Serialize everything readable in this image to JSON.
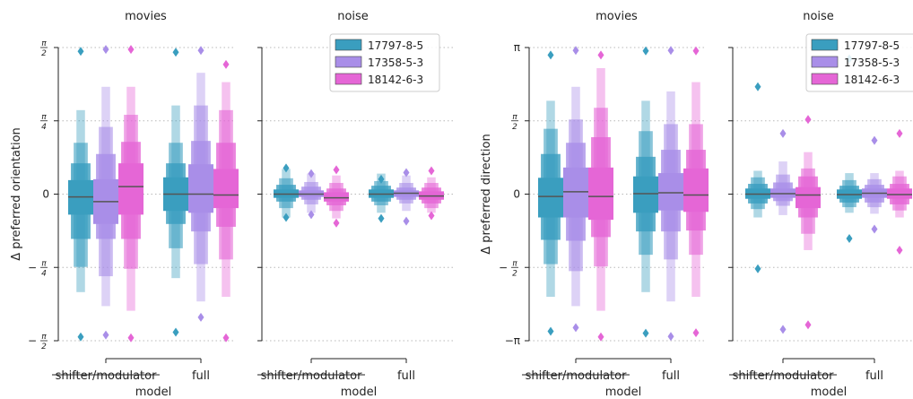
{
  "colors": {
    "17797-8-5": "#3a9ebf",
    "17358-5-3": "#a98ee8",
    "18142-6-3": "#e566d6"
  },
  "chart_data": [
    {
      "type": "boxen",
      "title": "movies",
      "xlabel": "model",
      "ylabel": "Δ preferred orientation",
      "categories": [
        "shifter/modulator",
        "full"
      ],
      "ylim": [
        -1.5708,
        1.5708
      ],
      "yticks": [
        {
          "v": 1.5708,
          "num": "π",
          "den": "2",
          "sign": ""
        },
        {
          "v": 0.7854,
          "num": "π",
          "den": "4",
          "sign": ""
        },
        {
          "v": 0,
          "txt": "0"
        },
        {
          "v": -0.7854,
          "num": "π",
          "den": "4",
          "sign": "−"
        },
        {
          "v": -1.5708,
          "num": "π",
          "den": "2",
          "sign": "−"
        }
      ],
      "series": [
        {
          "name": "17797-8-5",
          "values": [
            {
              "median": -0.03,
              "boxes": [
                [
                  -0.22,
                  0.15
                ],
                [
                  -0.48,
                  0.33
                ],
                [
                  -0.78,
                  0.55
                ],
                [
                  -1.05,
                  0.9
                ]
              ],
              "outliers": [
                1.53,
                -1.53
              ]
            },
            {
              "median": 0.0,
              "boxes": [
                [
                  -0.18,
                  0.18
                ],
                [
                  -0.32,
                  0.33
                ],
                [
                  -0.58,
                  0.55
                ],
                [
                  -0.9,
                  0.95
                ]
              ],
              "outliers": [
                1.52,
                -1.48
              ]
            }
          ]
        },
        {
          "name": "17358-5-3",
          "values": [
            {
              "median": -0.08,
              "boxes": [
                [
                  -0.32,
                  0.16
                ],
                [
                  -0.48,
                  0.43
                ],
                [
                  -0.88,
                  0.72
                ],
                [
                  -1.2,
                  1.15
                ]
              ],
              "outliers": [
                1.55,
                -1.51
              ]
            },
            {
              "median": 0.0,
              "boxes": [
                [
                  -0.2,
                  0.32
                ],
                [
                  -0.4,
                  0.57
                ],
                [
                  -0.75,
                  0.95
                ],
                [
                  -1.15,
                  1.3
                ]
              ],
              "outliers": [
                1.54,
                -1.32
              ]
            }
          ]
        },
        {
          "name": "18142-6-3",
          "values": [
            {
              "median": 0.08,
              "boxes": [
                [
                  -0.22,
                  0.33
                ],
                [
                  -0.48,
                  0.56
                ],
                [
                  -0.8,
                  0.85
                ],
                [
                  -1.25,
                  1.15
                ]
              ],
              "outliers": [
                1.55,
                -1.54
              ]
            },
            {
              "median": -0.01,
              "boxes": [
                [
                  -0.15,
                  0.27
                ],
                [
                  -0.35,
                  0.55
                ],
                [
                  -0.7,
                  0.9
                ],
                [
                  -1.1,
                  1.2
                ]
              ],
              "outliers": [
                1.39,
                -1.54
              ]
            }
          ]
        }
      ]
    },
    {
      "type": "boxen",
      "title": "noise",
      "xlabel": "model",
      "ylabel": "",
      "categories": [
        "shifter/modulator",
        "full"
      ],
      "ylim": [
        -1.5708,
        1.5708
      ],
      "legend": "top-right",
      "series": [
        {
          "name": "17797-8-5",
          "values": [
            {
              "median": 0.0,
              "boxes": [
                [
                  -0.04,
                  0.05
                ],
                [
                  -0.08,
                  0.1
                ],
                [
                  -0.15,
                  0.17
                ],
                [
                  -0.25,
                  0.27
                ]
              ],
              "outliers": [
                0.28,
                -0.25
              ]
            },
            {
              "median": 0.0,
              "boxes": [
                [
                  -0.04,
                  0.05
                ],
                [
                  -0.08,
                  0.09
                ],
                [
                  -0.12,
                  0.14
                ],
                [
                  -0.2,
                  0.22
                ]
              ],
              "outliers": [
                0.16,
                -0.26
              ]
            }
          ]
        },
        {
          "name": "17358-5-3",
          "values": [
            {
              "median": 0.0,
              "boxes": [
                [
                  -0.03,
                  0.04
                ],
                [
                  -0.06,
                  0.08
                ],
                [
                  -0.11,
                  0.13
                ],
                [
                  -0.2,
                  0.22
                ]
              ],
              "outliers": [
                0.22,
                -0.22
              ]
            },
            {
              "median": 0.01,
              "boxes": [
                [
                  -0.03,
                  0.04
                ],
                [
                  -0.06,
                  0.07
                ],
                [
                  -0.1,
                  0.12
                ],
                [
                  -0.18,
                  0.2
                ]
              ],
              "outliers": [
                0.23,
                -0.29
              ]
            }
          ]
        },
        {
          "name": "18142-6-3",
          "values": [
            {
              "median": -0.04,
              "boxes": [
                [
                  -0.08,
                  0.02
                ],
                [
                  -0.12,
                  0.06
                ],
                [
                  -0.18,
                  0.12
                ],
                [
                  -0.26,
                  0.2
                ]
              ],
              "outliers": [
                0.26,
                -0.31
              ]
            },
            {
              "median": -0.02,
              "boxes": [
                [
                  -0.06,
                  0.03
                ],
                [
                  -0.1,
                  0.07
                ],
                [
                  -0.15,
                  0.12
                ],
                [
                  -0.2,
                  0.18
                ]
              ],
              "outliers": [
                0.25,
                -0.23
              ]
            }
          ]
        }
      ]
    },
    {
      "type": "boxen",
      "title": "movies",
      "xlabel": "model",
      "ylabel": "Δ preferred direction",
      "categories": [
        "shifter/modulator",
        "full"
      ],
      "ylim": [
        -3.1416,
        3.1416
      ],
      "yticks": [
        {
          "v": 3.1416,
          "txt": "π"
        },
        {
          "v": 1.5708,
          "num": "π",
          "den": "2",
          "sign": ""
        },
        {
          "v": 0,
          "txt": "0"
        },
        {
          "v": -1.5708,
          "num": "π",
          "den": "2",
          "sign": "−"
        },
        {
          "v": -3.1416,
          "txt": "−π"
        }
      ],
      "series": [
        {
          "name": "17797-8-5",
          "values": [
            {
              "median": -0.05,
              "boxes": [
                [
                  -0.5,
                  0.35
                ],
                [
                  -0.98,
                  0.86
                ],
                [
                  -1.5,
                  1.4
                ],
                [
                  -2.2,
                  2.0
                ]
              ],
              "outliers": [
                2.98,
                -2.94
              ]
            },
            {
              "median": 0.01,
              "boxes": [
                [
                  -0.4,
                  0.38
                ],
                [
                  -0.8,
                  0.8
                ],
                [
                  -1.3,
                  1.35
                ],
                [
                  -2.1,
                  2.0
                ]
              ],
              "outliers": [
                3.07,
                -2.98
              ]
            }
          ]
        },
        {
          "name": "17358-5-3",
          "values": [
            {
              "median": 0.05,
              "boxes": [
                [
                  -0.5,
                  0.57
                ],
                [
                  -1.0,
                  1.1
                ],
                [
                  -1.65,
                  1.6
                ],
                [
                  -2.4,
                  2.3
                ]
              ],
              "outliers": [
                3.08,
                -2.86
              ]
            },
            {
              "median": 0.03,
              "boxes": [
                [
                  -0.35,
                  0.45
                ],
                [
                  -0.8,
                  0.95
                ],
                [
                  -1.4,
                  1.5
                ],
                [
                  -2.3,
                  2.2
                ]
              ],
              "outliers": [
                3.08,
                -3.05
              ]
            }
          ]
        },
        {
          "name": "18142-6-3",
          "values": [
            {
              "median": -0.05,
              "boxes": [
                [
                  -0.55,
                  0.57
                ],
                [
                  -0.92,
                  1.22
                ],
                [
                  -1.55,
                  1.85
                ],
                [
                  -2.5,
                  2.7
                ]
              ],
              "outliers": [
                2.98,
                -3.06
              ]
            },
            {
              "median": -0.02,
              "boxes": [
                [
                  -0.38,
                  0.55
                ],
                [
                  -0.78,
                  0.95
                ],
                [
                  -1.3,
                  1.5
                ],
                [
                  -2.2,
                  2.4
                ]
              ],
              "outliers": [
                3.07,
                -2.97
              ]
            }
          ]
        }
      ]
    },
    {
      "type": "boxen",
      "title": "noise",
      "xlabel": "model",
      "ylabel": "",
      "categories": [
        "shifter/modulator",
        "full"
      ],
      "ylim": [
        -3.1416,
        3.1416
      ],
      "legend": "top-right",
      "series": [
        {
          "name": "17797-8-5",
          "values": [
            {
              "median": 0.0,
              "boxes": [
                [
                  -0.1,
                  0.12
                ],
                [
                  -0.2,
                  0.22
                ],
                [
                  -0.32,
                  0.36
                ],
                [
                  -0.5,
                  0.5
                ]
              ],
              "outliers": [
                2.3,
                -1.6
              ]
            },
            {
              "median": -0.01,
              "boxes": [
                [
                  -0.1,
                  0.1
                ],
                [
                  -0.18,
                  0.18
                ],
                [
                  -0.28,
                  0.3
                ],
                [
                  -0.4,
                  0.45
                ]
              ],
              "outliers": [
                2.9,
                -0.95
              ]
            }
          ]
        },
        {
          "name": "17358-5-3",
          "values": [
            {
              "median": 0.01,
              "boxes": [
                [
                  -0.08,
                  0.12
                ],
                [
                  -0.15,
                  0.25
                ],
                [
                  -0.25,
                  0.42
                ],
                [
                  -0.45,
                  0.7
                ]
              ],
              "outliers": [
                1.3,
                -2.9
              ]
            },
            {
              "median": 0.02,
              "boxes": [
                [
                  -0.08,
                  0.12
                ],
                [
                  -0.18,
                  0.2
                ],
                [
                  -0.28,
                  0.32
                ],
                [
                  -0.42,
                  0.45
                ]
              ],
              "outliers": [
                1.15,
                -0.75
              ]
            }
          ]
        },
        {
          "name": "18142-6-3",
          "values": [
            {
              "median": -0.02,
              "boxes": [
                [
                  -0.3,
                  0.15
                ],
                [
                  -0.5,
                  0.38
                ],
                [
                  -0.85,
                  0.55
                ],
                [
                  -1.2,
                  0.9
                ]
              ],
              "outliers": [
                1.6,
                -2.8
              ]
            },
            {
              "median": -0.01,
              "boxes": [
                [
                  -0.1,
                  0.12
                ],
                [
                  -0.22,
                  0.22
                ],
                [
                  -0.35,
                  0.38
                ],
                [
                  -0.5,
                  0.5
                ]
              ],
              "outliers": [
                1.3,
                -1.2
              ]
            }
          ]
        }
      ]
    }
  ]
}
